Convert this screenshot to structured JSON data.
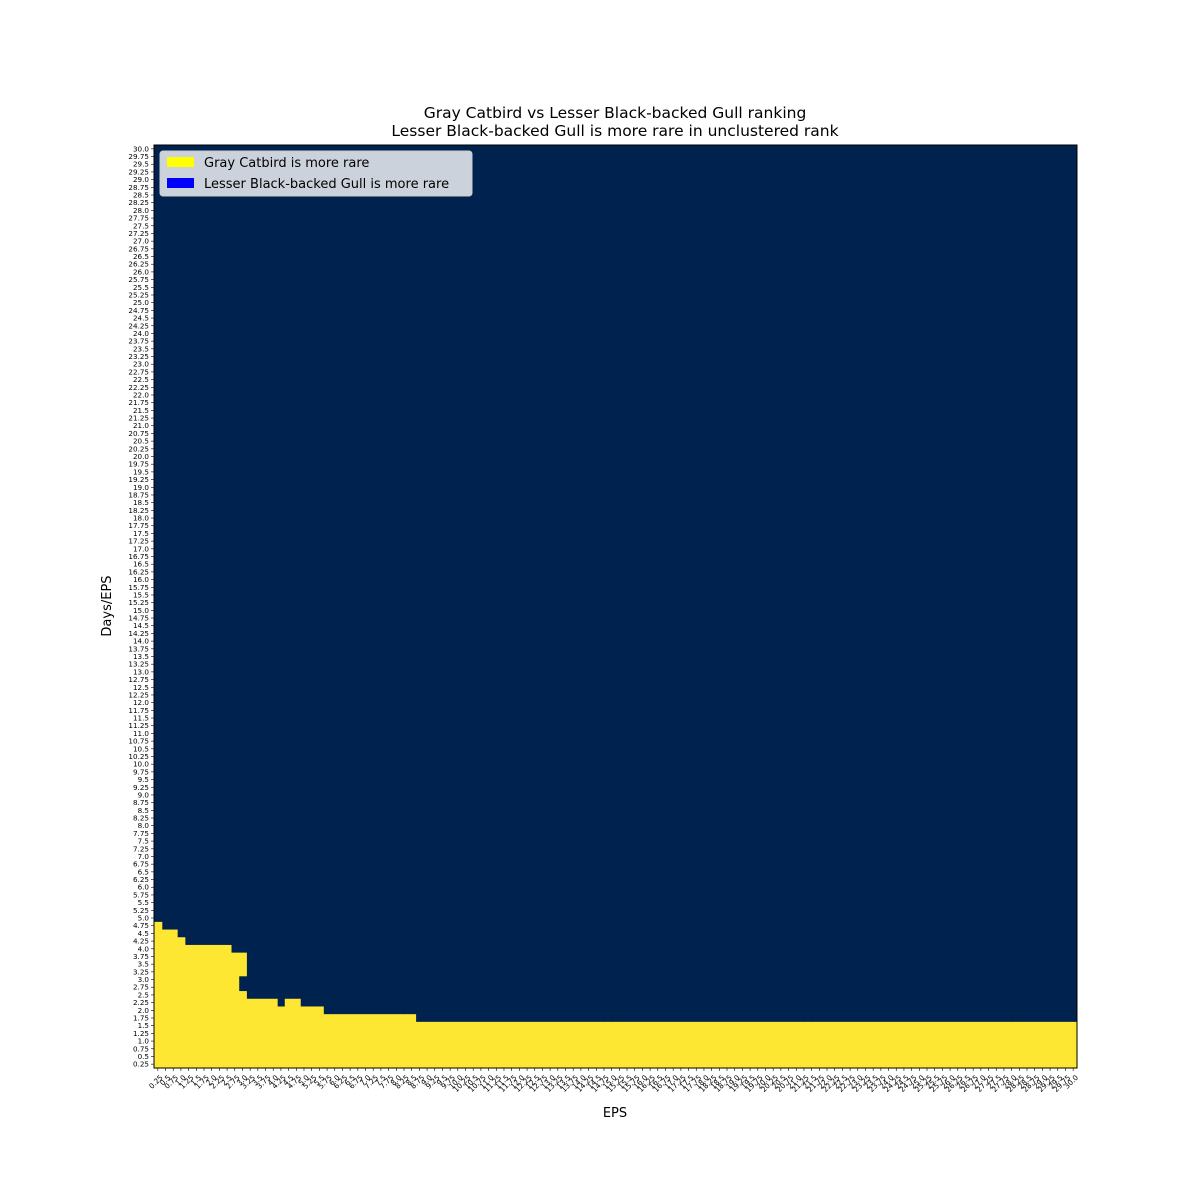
{
  "chart_data": {
    "type": "heatmap",
    "title": "Gray Catbird vs Lesser Black-backed Gull ranking",
    "subtitle": "Lesser Black-backed Gull is more rare in unclustered rank",
    "xlabel": "EPS",
    "ylabel": "Days/EPS",
    "x_start": 0.25,
    "x_end": 30.0,
    "x_step": 0.25,
    "y_start": 0.25,
    "y_end": 30.0,
    "y_step": 0.25,
    "x_tick_every": 1,
    "y_tick_every": 1,
    "colors": {
      "gray_catbird_more_rare": "#fde733",
      "lbbg_more_rare": "#00224e",
      "legend_lbbg_patch": "#0000ff"
    },
    "legend": {
      "placement": "upper-left",
      "entries": [
        {
          "label": "Gray Catbird is more rare",
          "color": "#ffff00"
        },
        {
          "label": "Lesser Black-backed Gull is more rare",
          "color": "#0000ff"
        }
      ]
    },
    "boundary_note": "Highest Days/EPS value at which Gray Catbird is more rare, per EPS column (cells at or below are yellow)",
    "boundary": [
      {
        "eps": 0.25,
        "days_eps_max": 4.75
      },
      {
        "eps": 0.5,
        "days_eps_max": 4.5
      },
      {
        "eps": 0.75,
        "days_eps_max": 4.5
      },
      {
        "eps": 1.0,
        "days_eps_max": 4.25
      },
      {
        "eps": 1.25,
        "days_eps_max": 4.0
      },
      {
        "eps": 1.5,
        "days_eps_max": 4.0
      },
      {
        "eps": 1.75,
        "days_eps_max": 4.0
      },
      {
        "eps": 2.0,
        "days_eps_max": 4.0
      },
      {
        "eps": 2.25,
        "days_eps_max": 4.0
      },
      {
        "eps": 2.5,
        "days_eps_max": 4.0
      },
      {
        "eps": 2.75,
        "days_eps_max": 3.75
      },
      {
        "eps": 3.0,
        "days_eps_max": 2.5
      },
      {
        "eps": 3.25,
        "days_eps_max": 2.25
      },
      {
        "eps": 3.5,
        "days_eps_max": 2.25
      },
      {
        "eps": 3.75,
        "days_eps_max": 2.25
      },
      {
        "eps": 4.0,
        "days_eps_max": 2.25
      },
      {
        "eps": 4.25,
        "days_eps_max": 2.0
      },
      {
        "eps": 4.5,
        "days_eps_max": 2.25
      },
      {
        "eps": 4.75,
        "days_eps_max": 2.25
      },
      {
        "eps": 5.0,
        "days_eps_max": 2.0
      },
      {
        "eps": 5.25,
        "days_eps_max": 2.0
      },
      {
        "eps": 5.5,
        "days_eps_max": 2.0
      },
      {
        "eps": 5.75,
        "days_eps_max": 1.75
      },
      {
        "eps": 6.0,
        "days_eps_max": 1.75
      },
      {
        "eps": 6.25,
        "days_eps_max": 1.75
      },
      {
        "eps": 6.5,
        "days_eps_max": 1.75
      },
      {
        "eps": 6.75,
        "days_eps_max": 1.75
      },
      {
        "eps": 7.0,
        "days_eps_max": 1.75
      },
      {
        "eps": 7.25,
        "days_eps_max": 1.75
      },
      {
        "eps": 7.5,
        "days_eps_max": 1.75
      },
      {
        "eps": 7.75,
        "days_eps_max": 1.75
      },
      {
        "eps": 8.0,
        "days_eps_max": 1.75
      },
      {
        "eps": 8.25,
        "days_eps_max": 1.75
      },
      {
        "eps": 8.5,
        "days_eps_max": 1.75
      },
      {
        "eps": 8.75,
        "days_eps_max": 1.5
      },
      {
        "eps": 30.0,
        "days_eps_max": 1.5
      }
    ],
    "special_cells": [
      {
        "eps": 3.0,
        "days_eps": 3.0,
        "gray_catbird_more_rare": false
      },
      {
        "eps": 3.0,
        "days_eps": 3.25,
        "gray_catbird_more_rare": true
      },
      {
        "eps": 3.0,
        "days_eps": 3.5,
        "gray_catbird_more_rare": true
      },
      {
        "eps": 3.0,
        "days_eps": 3.75,
        "gray_catbird_more_rare": true
      }
    ]
  }
}
